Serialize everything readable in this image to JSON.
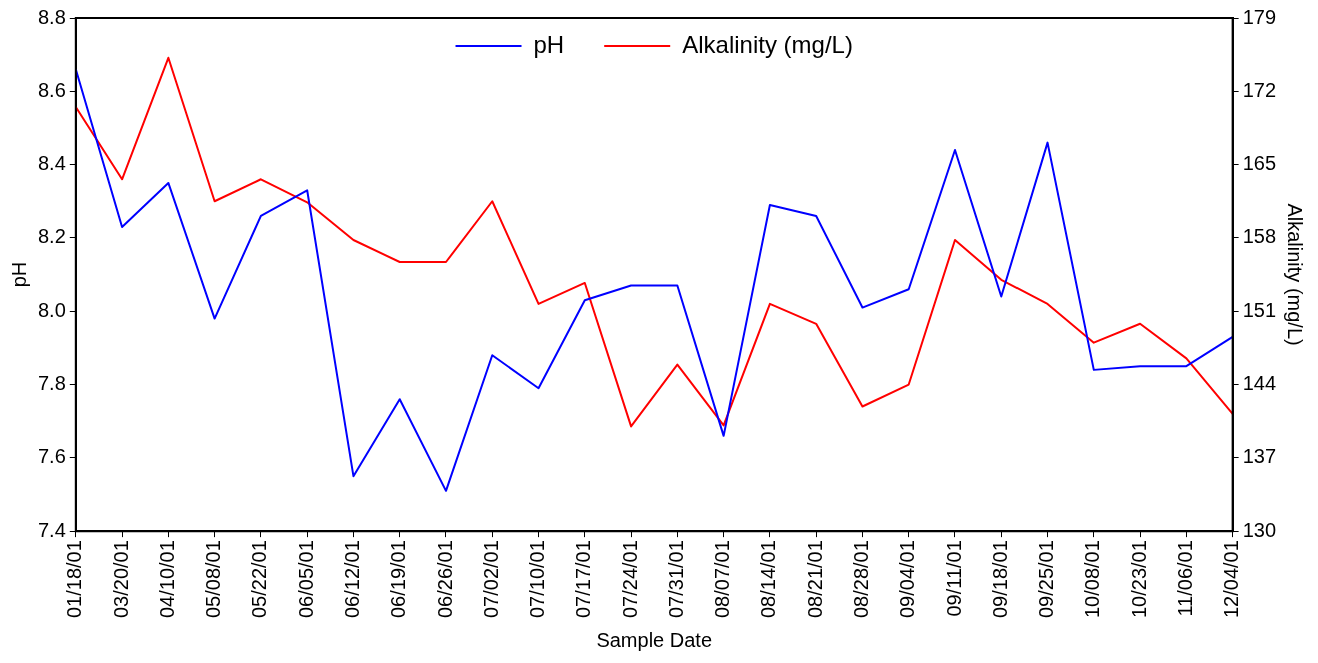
{
  "chart_data": {
    "type": "line",
    "xlabel": "Sample Date",
    "ylabel": "pH",
    "y2label": "Alkalinity (mg/L)",
    "categories": [
      "01/18/01",
      "03/20/01",
      "04/10/01",
      "05/08/01",
      "05/22/01",
      "06/05/01",
      "06/12/01",
      "06/19/01",
      "06/26/01",
      "07/02/01",
      "07/10/01",
      "07/17/01",
      "07/24/01",
      "07/31/01",
      "08/07/01",
      "08/14/01",
      "08/21/01",
      "08/28/01",
      "09/04/01",
      "09/11/01",
      "09/18/01",
      "09/25/01",
      "10/08/01",
      "10/23/01",
      "11/06/01",
      "12/04/01"
    ],
    "series": [
      {
        "name": "pH",
        "color": "#0000ff",
        "values": [
          8.66,
          8.23,
          8.35,
          7.98,
          8.26,
          8.33,
          7.55,
          7.76,
          7.51,
          7.88,
          7.79,
          8.03,
          8.07,
          8.07,
          7.66,
          8.29,
          8.26,
          8.01,
          8.06,
          8.44,
          8.04,
          8.46,
          7.84,
          7.85,
          7.85,
          7.93
        ]
      },
      {
        "name": "Alkalinity (mg/L)",
        "color": "#ff0000",
        "axis": "y2",
        "values": [
          170.5,
          163.6,
          175.2,
          161.5,
          163.6,
          161.4,
          157.8,
          155.7,
          155.7,
          161.5,
          151.7,
          153.7,
          140.0,
          145.9,
          140.1,
          151.7,
          149.8,
          141.9,
          144.0,
          157.8,
          154.0,
          151.7,
          148.0,
          149.8,
          146.5,
          141.2
        ]
      }
    ],
    "ylim": [
      7.4,
      8.8
    ],
    "yticks": [
      {
        "value": 7.4,
        "label": "7.4"
      },
      {
        "value": 7.6,
        "label": "7.6"
      },
      {
        "value": 7.8,
        "label": "7.8"
      },
      {
        "value": 8.0,
        "label": "8.0"
      },
      {
        "value": 8.2,
        "label": "8.2"
      },
      {
        "value": 8.4,
        "label": "8.4"
      },
      {
        "value": 8.6,
        "label": "8.6"
      },
      {
        "value": 8.8,
        "label": "8.8"
      }
    ],
    "y2lim": [
      130,
      179
    ],
    "y2ticks": [
      130,
      137,
      144,
      151,
      158,
      165,
      172,
      179
    ],
    "grid": false,
    "legend": "top",
    "marker": "none",
    "line_style": "solid"
  }
}
